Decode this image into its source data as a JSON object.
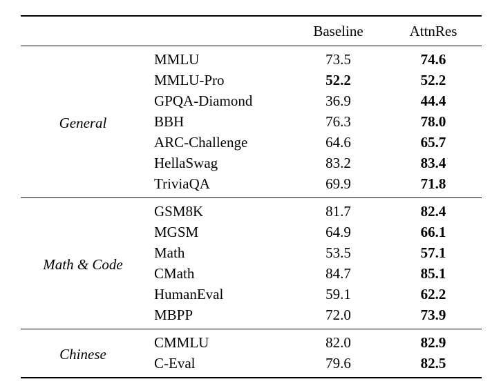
{
  "table": {
    "header": {
      "col_category": "",
      "col_benchmark": "",
      "col_baseline": "Baseline",
      "col_attnres": "AttnRes"
    },
    "text_color": "#000000",
    "background_color": "#ffffff",
    "sections": [
      {
        "category": "General",
        "rows": [
          {
            "benchmark": "MMLU",
            "baseline": "73.5",
            "baseline_bold": false,
            "attnres": "74.6",
            "attnres_bold": true
          },
          {
            "benchmark": "MMLU-Pro",
            "baseline": "52.2",
            "baseline_bold": true,
            "attnres": "52.2",
            "attnres_bold": true
          },
          {
            "benchmark": "GPQA-Diamond",
            "baseline": "36.9",
            "baseline_bold": false,
            "attnres": "44.4",
            "attnres_bold": true
          },
          {
            "benchmark": "BBH",
            "baseline": "76.3",
            "baseline_bold": false,
            "attnres": "78.0",
            "attnres_bold": true
          },
          {
            "benchmark": "ARC-Challenge",
            "baseline": "64.6",
            "baseline_bold": false,
            "attnres": "65.7",
            "attnres_bold": true
          },
          {
            "benchmark": "HellaSwag",
            "baseline": "83.2",
            "baseline_bold": false,
            "attnres": "83.4",
            "attnres_bold": true
          },
          {
            "benchmark": "TriviaQA",
            "baseline": "69.9",
            "baseline_bold": false,
            "attnres": "71.8",
            "attnres_bold": true
          }
        ]
      },
      {
        "category": "Math & Code",
        "rows": [
          {
            "benchmark": "GSM8K",
            "baseline": "81.7",
            "baseline_bold": false,
            "attnres": "82.4",
            "attnres_bold": true
          },
          {
            "benchmark": "MGSM",
            "baseline": "64.9",
            "baseline_bold": false,
            "attnres": "66.1",
            "attnres_bold": true
          },
          {
            "benchmark": "Math",
            "baseline": "53.5",
            "baseline_bold": false,
            "attnres": "57.1",
            "attnres_bold": true
          },
          {
            "benchmark": "CMath",
            "baseline": "84.7",
            "baseline_bold": false,
            "attnres": "85.1",
            "attnres_bold": true
          },
          {
            "benchmark": "HumanEval",
            "baseline": "59.1",
            "baseline_bold": false,
            "attnres": "62.2",
            "attnres_bold": true
          },
          {
            "benchmark": "MBPP",
            "baseline": "72.0",
            "baseline_bold": false,
            "attnres": "73.9",
            "attnres_bold": true
          }
        ]
      },
      {
        "category": "Chinese",
        "rows": [
          {
            "benchmark": "CMMLU",
            "baseline": "82.0",
            "baseline_bold": false,
            "attnres": "82.9",
            "attnres_bold": true
          },
          {
            "benchmark": "C-Eval",
            "baseline": "79.6",
            "baseline_bold": false,
            "attnres": "82.5",
            "attnres_bold": true
          }
        ]
      }
    ]
  }
}
